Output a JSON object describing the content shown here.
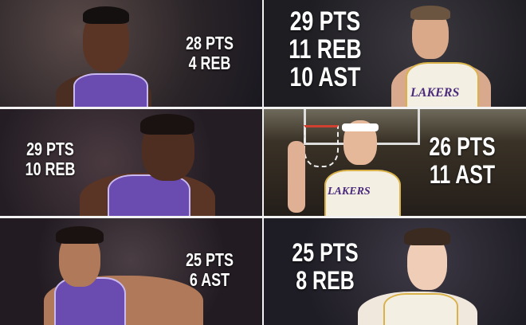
{
  "panels": [
    {
      "stats": [
        "28 PTS",
        "4 REB"
      ],
      "jersey": "purple"
    },
    {
      "stats": [
        "29 PTS",
        "11 REB",
        "10 AST"
      ],
      "jersey": "white",
      "jersey_text": "LAKERS"
    },
    {
      "stats": [
        "29 PTS",
        "10 REB"
      ],
      "jersey": "purple"
    },
    {
      "stats": [
        "26 PTS",
        "11 AST"
      ],
      "jersey": "white",
      "jersey_text": "LAKERS"
    },
    {
      "stats": [
        "25 PTS",
        "6 AST"
      ],
      "jersey": "purple"
    },
    {
      "stats": [
        "25 PTS",
        "8 REB"
      ],
      "jersey": "white"
    }
  ],
  "colors": {
    "purple_jersey": "#6a4bb0",
    "white_jersey": "#f3efe3",
    "trim_gold": "#d9b24a",
    "divider": "#ffffff"
  }
}
